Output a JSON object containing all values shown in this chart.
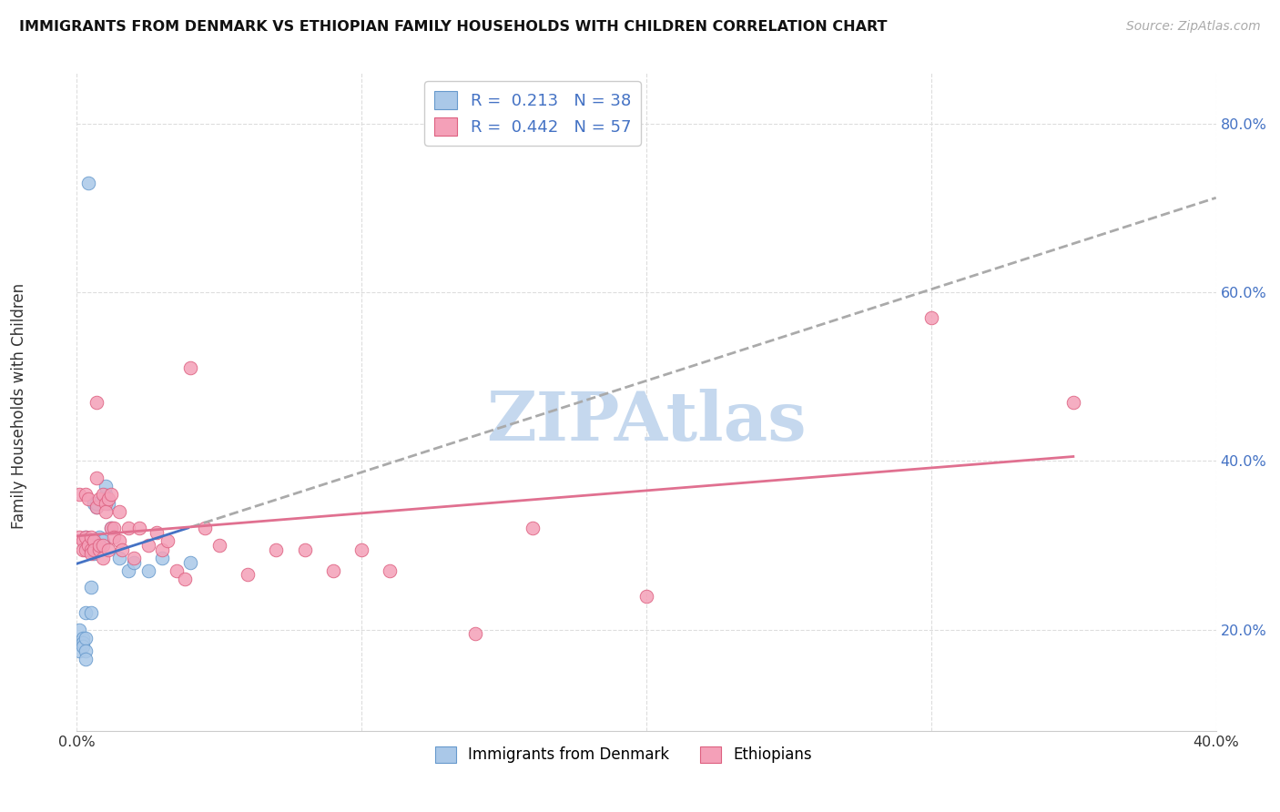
{
  "title": "IMMIGRANTS FROM DENMARK VS ETHIOPIAN FAMILY HOUSEHOLDS WITH CHILDREN CORRELATION CHART",
  "source": "Source: ZipAtlas.com",
  "ylabel": "Family Households with Children",
  "xlim": [
    0.0,
    0.4
  ],
  "ylim": [
    0.08,
    0.86
  ],
  "xticks": [
    0.0,
    0.1,
    0.2,
    0.3,
    0.4
  ],
  "yticks": [
    0.2,
    0.4,
    0.6,
    0.8
  ],
  "watermark": "ZIPAtlas",
  "watermark_color": "#c5d8ee",
  "denmark_fill": "#aac8e8",
  "denmark_edge": "#6699cc",
  "ethiopian_fill": "#f4a0b8",
  "ethiopian_edge": "#dd6080",
  "denmark_line": "#4472c4",
  "ethiopian_line": "#e07090",
  "dashed_line": "#aaaaaa",
  "ytick_color": "#4472c4",
  "xtick_color": "#333333",
  "R_denmark": 0.213,
  "N_denmark": 38,
  "R_ethiopian": 0.442,
  "N_ethiopian": 57,
  "denmark_x": [
    0.001,
    0.001,
    0.002,
    0.002,
    0.002,
    0.003,
    0.003,
    0.003,
    0.003,
    0.003,
    0.003,
    0.004,
    0.004,
    0.004,
    0.004,
    0.005,
    0.005,
    0.005,
    0.005,
    0.005,
    0.006,
    0.006,
    0.006,
    0.006,
    0.007,
    0.007,
    0.008,
    0.009,
    0.01,
    0.01,
    0.011,
    0.012,
    0.015,
    0.018,
    0.02,
    0.025,
    0.03,
    0.04
  ],
  "denmark_y": [
    0.2,
    0.175,
    0.19,
    0.185,
    0.18,
    0.19,
    0.22,
    0.175,
    0.165,
    0.3,
    0.31,
    0.3,
    0.305,
    0.295,
    0.73,
    0.305,
    0.3,
    0.295,
    0.25,
    0.22,
    0.305,
    0.295,
    0.29,
    0.35,
    0.345,
    0.35,
    0.31,
    0.305,
    0.36,
    0.37,
    0.35,
    0.32,
    0.285,
    0.27,
    0.28,
    0.27,
    0.285,
    0.28
  ],
  "ethiopian_x": [
    0.001,
    0.001,
    0.002,
    0.002,
    0.003,
    0.003,
    0.003,
    0.004,
    0.004,
    0.005,
    0.005,
    0.005,
    0.006,
    0.006,
    0.007,
    0.007,
    0.007,
    0.008,
    0.008,
    0.008,
    0.009,
    0.009,
    0.009,
    0.01,
    0.01,
    0.011,
    0.011,
    0.012,
    0.012,
    0.013,
    0.013,
    0.015,
    0.015,
    0.016,
    0.018,
    0.02,
    0.022,
    0.025,
    0.028,
    0.03,
    0.032,
    0.035,
    0.038,
    0.04,
    0.045,
    0.05,
    0.06,
    0.07,
    0.08,
    0.09,
    0.1,
    0.11,
    0.14,
    0.16,
    0.2,
    0.3,
    0.35
  ],
  "ethiopian_y": [
    0.36,
    0.31,
    0.305,
    0.295,
    0.36,
    0.31,
    0.295,
    0.355,
    0.3,
    0.31,
    0.295,
    0.29,
    0.305,
    0.295,
    0.38,
    0.345,
    0.47,
    0.355,
    0.295,
    0.3,
    0.3,
    0.285,
    0.36,
    0.35,
    0.34,
    0.355,
    0.295,
    0.36,
    0.32,
    0.32,
    0.31,
    0.34,
    0.305,
    0.295,
    0.32,
    0.285,
    0.32,
    0.3,
    0.315,
    0.295,
    0.305,
    0.27,
    0.26,
    0.51,
    0.32,
    0.3,
    0.265,
    0.295,
    0.295,
    0.27,
    0.295,
    0.27,
    0.195,
    0.32,
    0.24,
    0.57,
    0.47
  ]
}
